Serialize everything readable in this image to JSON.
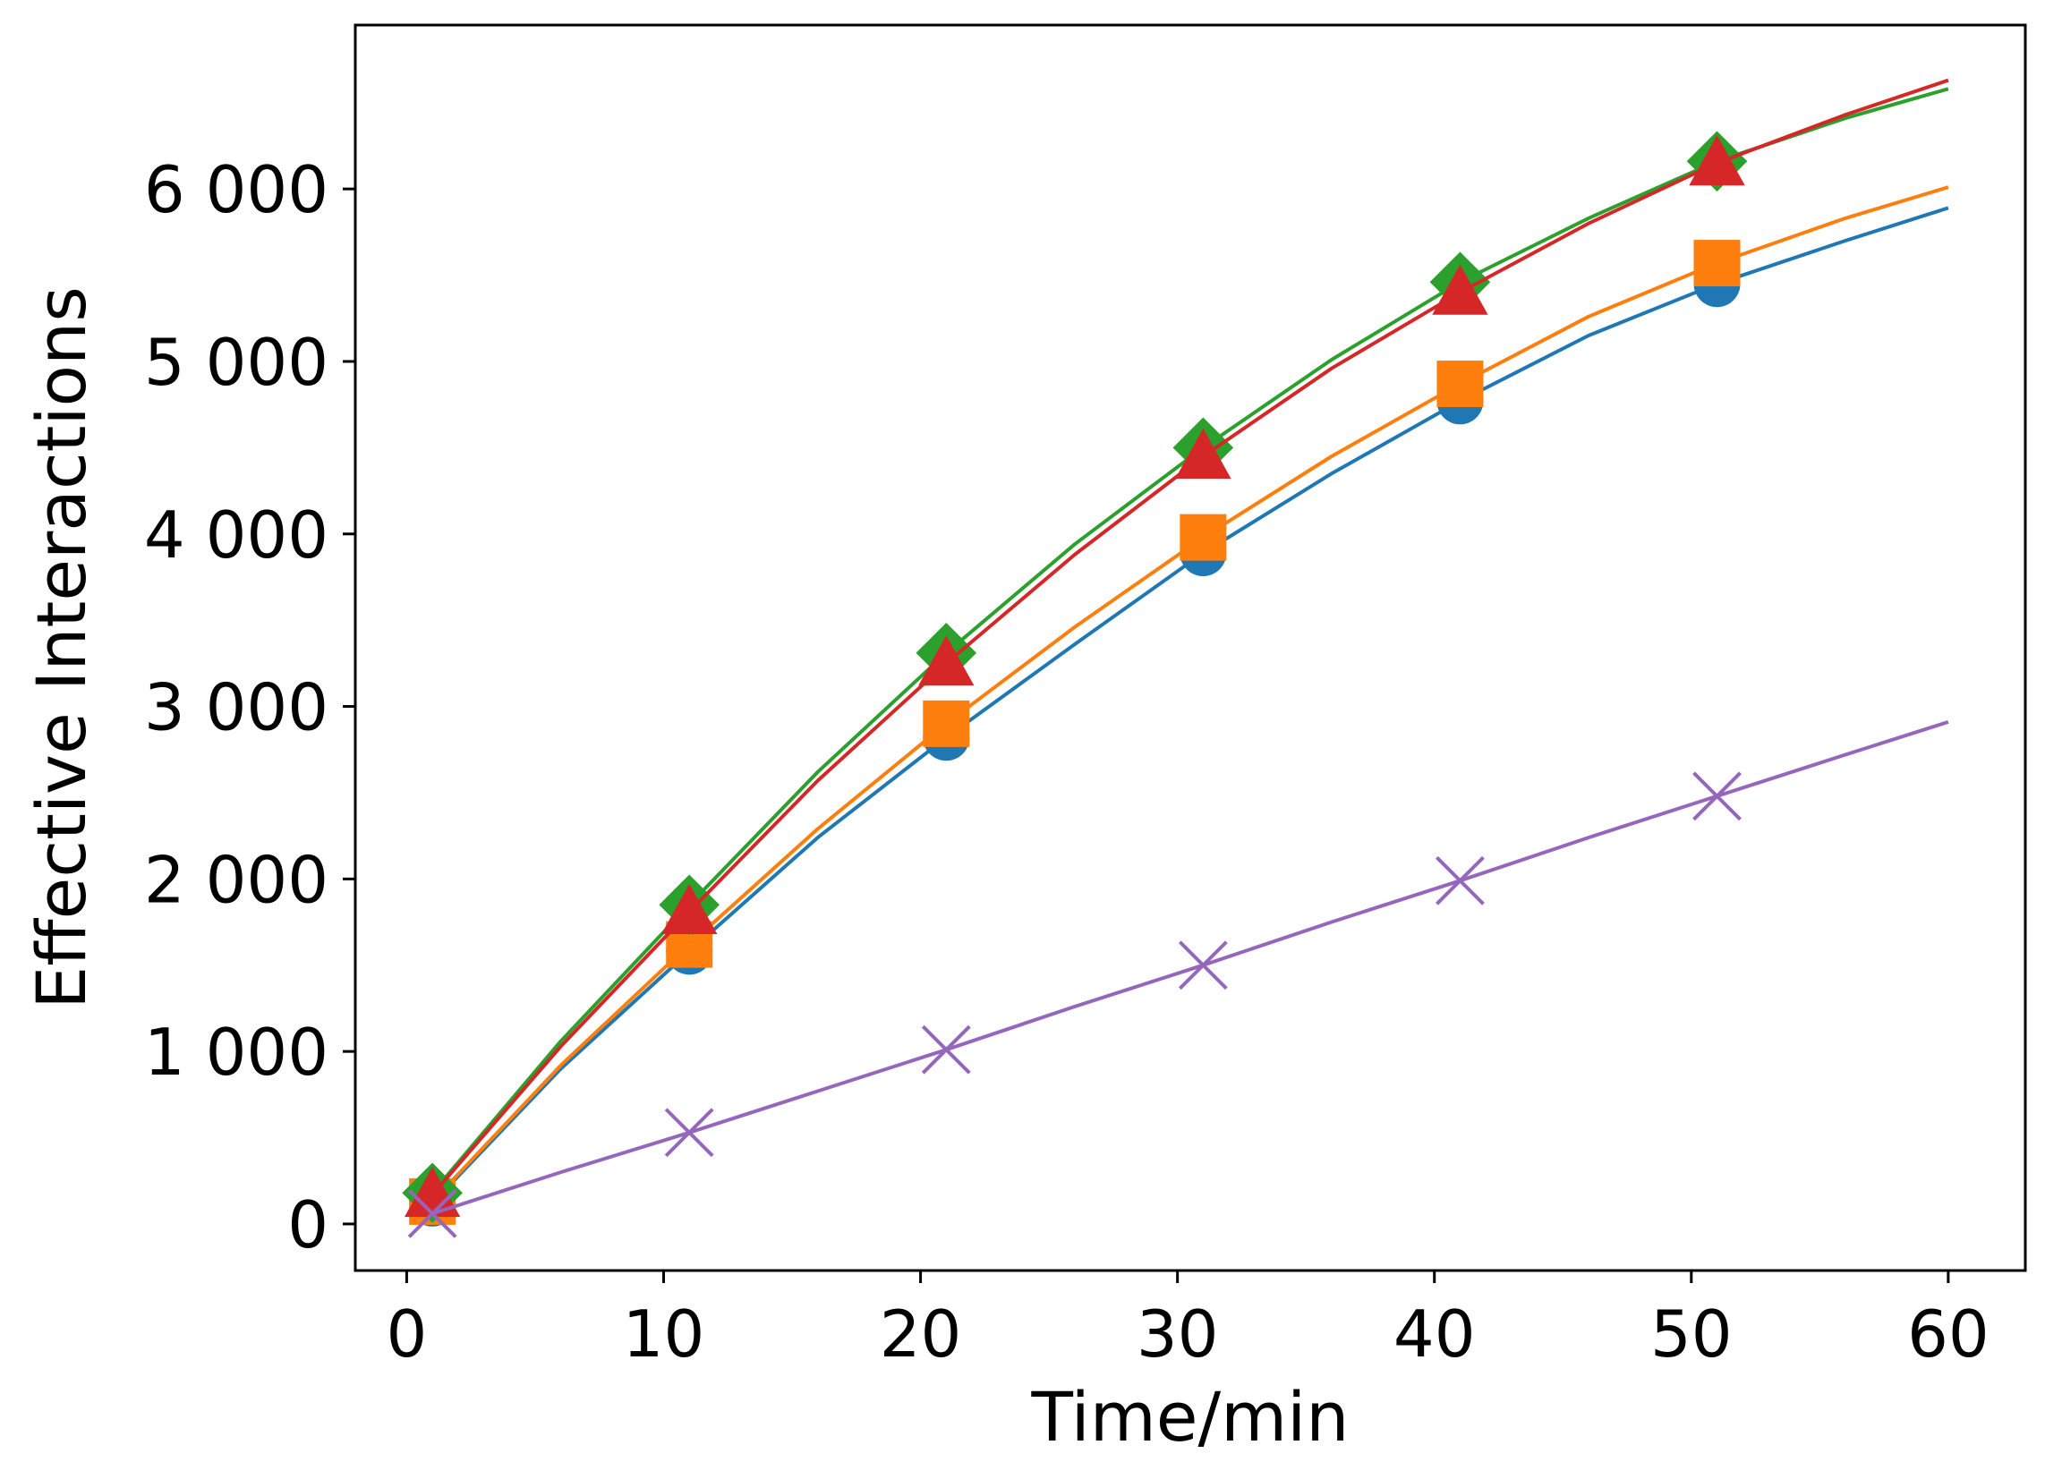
{
  "chart_data": {
    "type": "line",
    "title": "",
    "xlabel": "Time/min",
    "ylabel": "Effective Interactions",
    "xlim": [
      -2,
      63
    ],
    "ylim": [
      -270,
      6950
    ],
    "xticks": [
      0,
      10,
      20,
      30,
      40,
      50,
      60
    ],
    "xtick_labels": [
      "0",
      "10",
      "20",
      "30",
      "40",
      "50",
      "60"
    ],
    "yticks": [
      0,
      1000,
      2000,
      3000,
      4000,
      5000,
      6000
    ],
    "ytick_labels": [
      "0",
      "1 000",
      "2 000",
      "3 000",
      "4 000",
      "5 000",
      "6 000"
    ],
    "grid": false,
    "legend": "none",
    "x": [
      1,
      6,
      11,
      16,
      21,
      26,
      31,
      36,
      41,
      46,
      51,
      56,
      60
    ],
    "series": [
      {
        "name": "blue-circle",
        "color": "#1f77b4",
        "marker": "circle",
        "marker_every": [
          0,
          2,
          4,
          6,
          8,
          10
        ],
        "values": [
          120,
          900,
          1580,
          2240,
          2820,
          3360,
          3890,
          4350,
          4770,
          5150,
          5450,
          5700,
          5890
        ]
      },
      {
        "name": "orange-square",
        "color": "#ff7f0e",
        "marker": "square",
        "marker_every": [
          0,
          2,
          4,
          6,
          8,
          10
        ],
        "values": [
          130,
          920,
          1620,
          2290,
          2900,
          3460,
          3980,
          4450,
          4870,
          5260,
          5570,
          5830,
          6010
        ]
      },
      {
        "name": "green-diamond",
        "color": "#2ca02c",
        "marker": "diamond",
        "marker_every": [
          0,
          2,
          4,
          6,
          8,
          10
        ],
        "values": [
          180,
          1060,
          1850,
          2620,
          3310,
          3940,
          4500,
          5010,
          5460,
          5830,
          6160,
          6410,
          6580
        ]
      },
      {
        "name": "red-triangle",
        "color": "#d62728",
        "marker": "triangle",
        "marker_every": [
          0,
          2,
          4,
          6,
          8,
          10
        ],
        "values": [
          170,
          1030,
          1810,
          2570,
          3250,
          3880,
          4450,
          4960,
          5400,
          5800,
          6150,
          6430,
          6630
        ]
      },
      {
        "name": "purple-x",
        "color": "#9467bd",
        "marker": "x",
        "marker_every": [
          0,
          2,
          4,
          6,
          8,
          10
        ],
        "values": [
          60,
          300,
          530,
          770,
          1010,
          1260,
          1500,
          1750,
          1990,
          2240,
          2480,
          2720,
          2910
        ]
      }
    ]
  }
}
